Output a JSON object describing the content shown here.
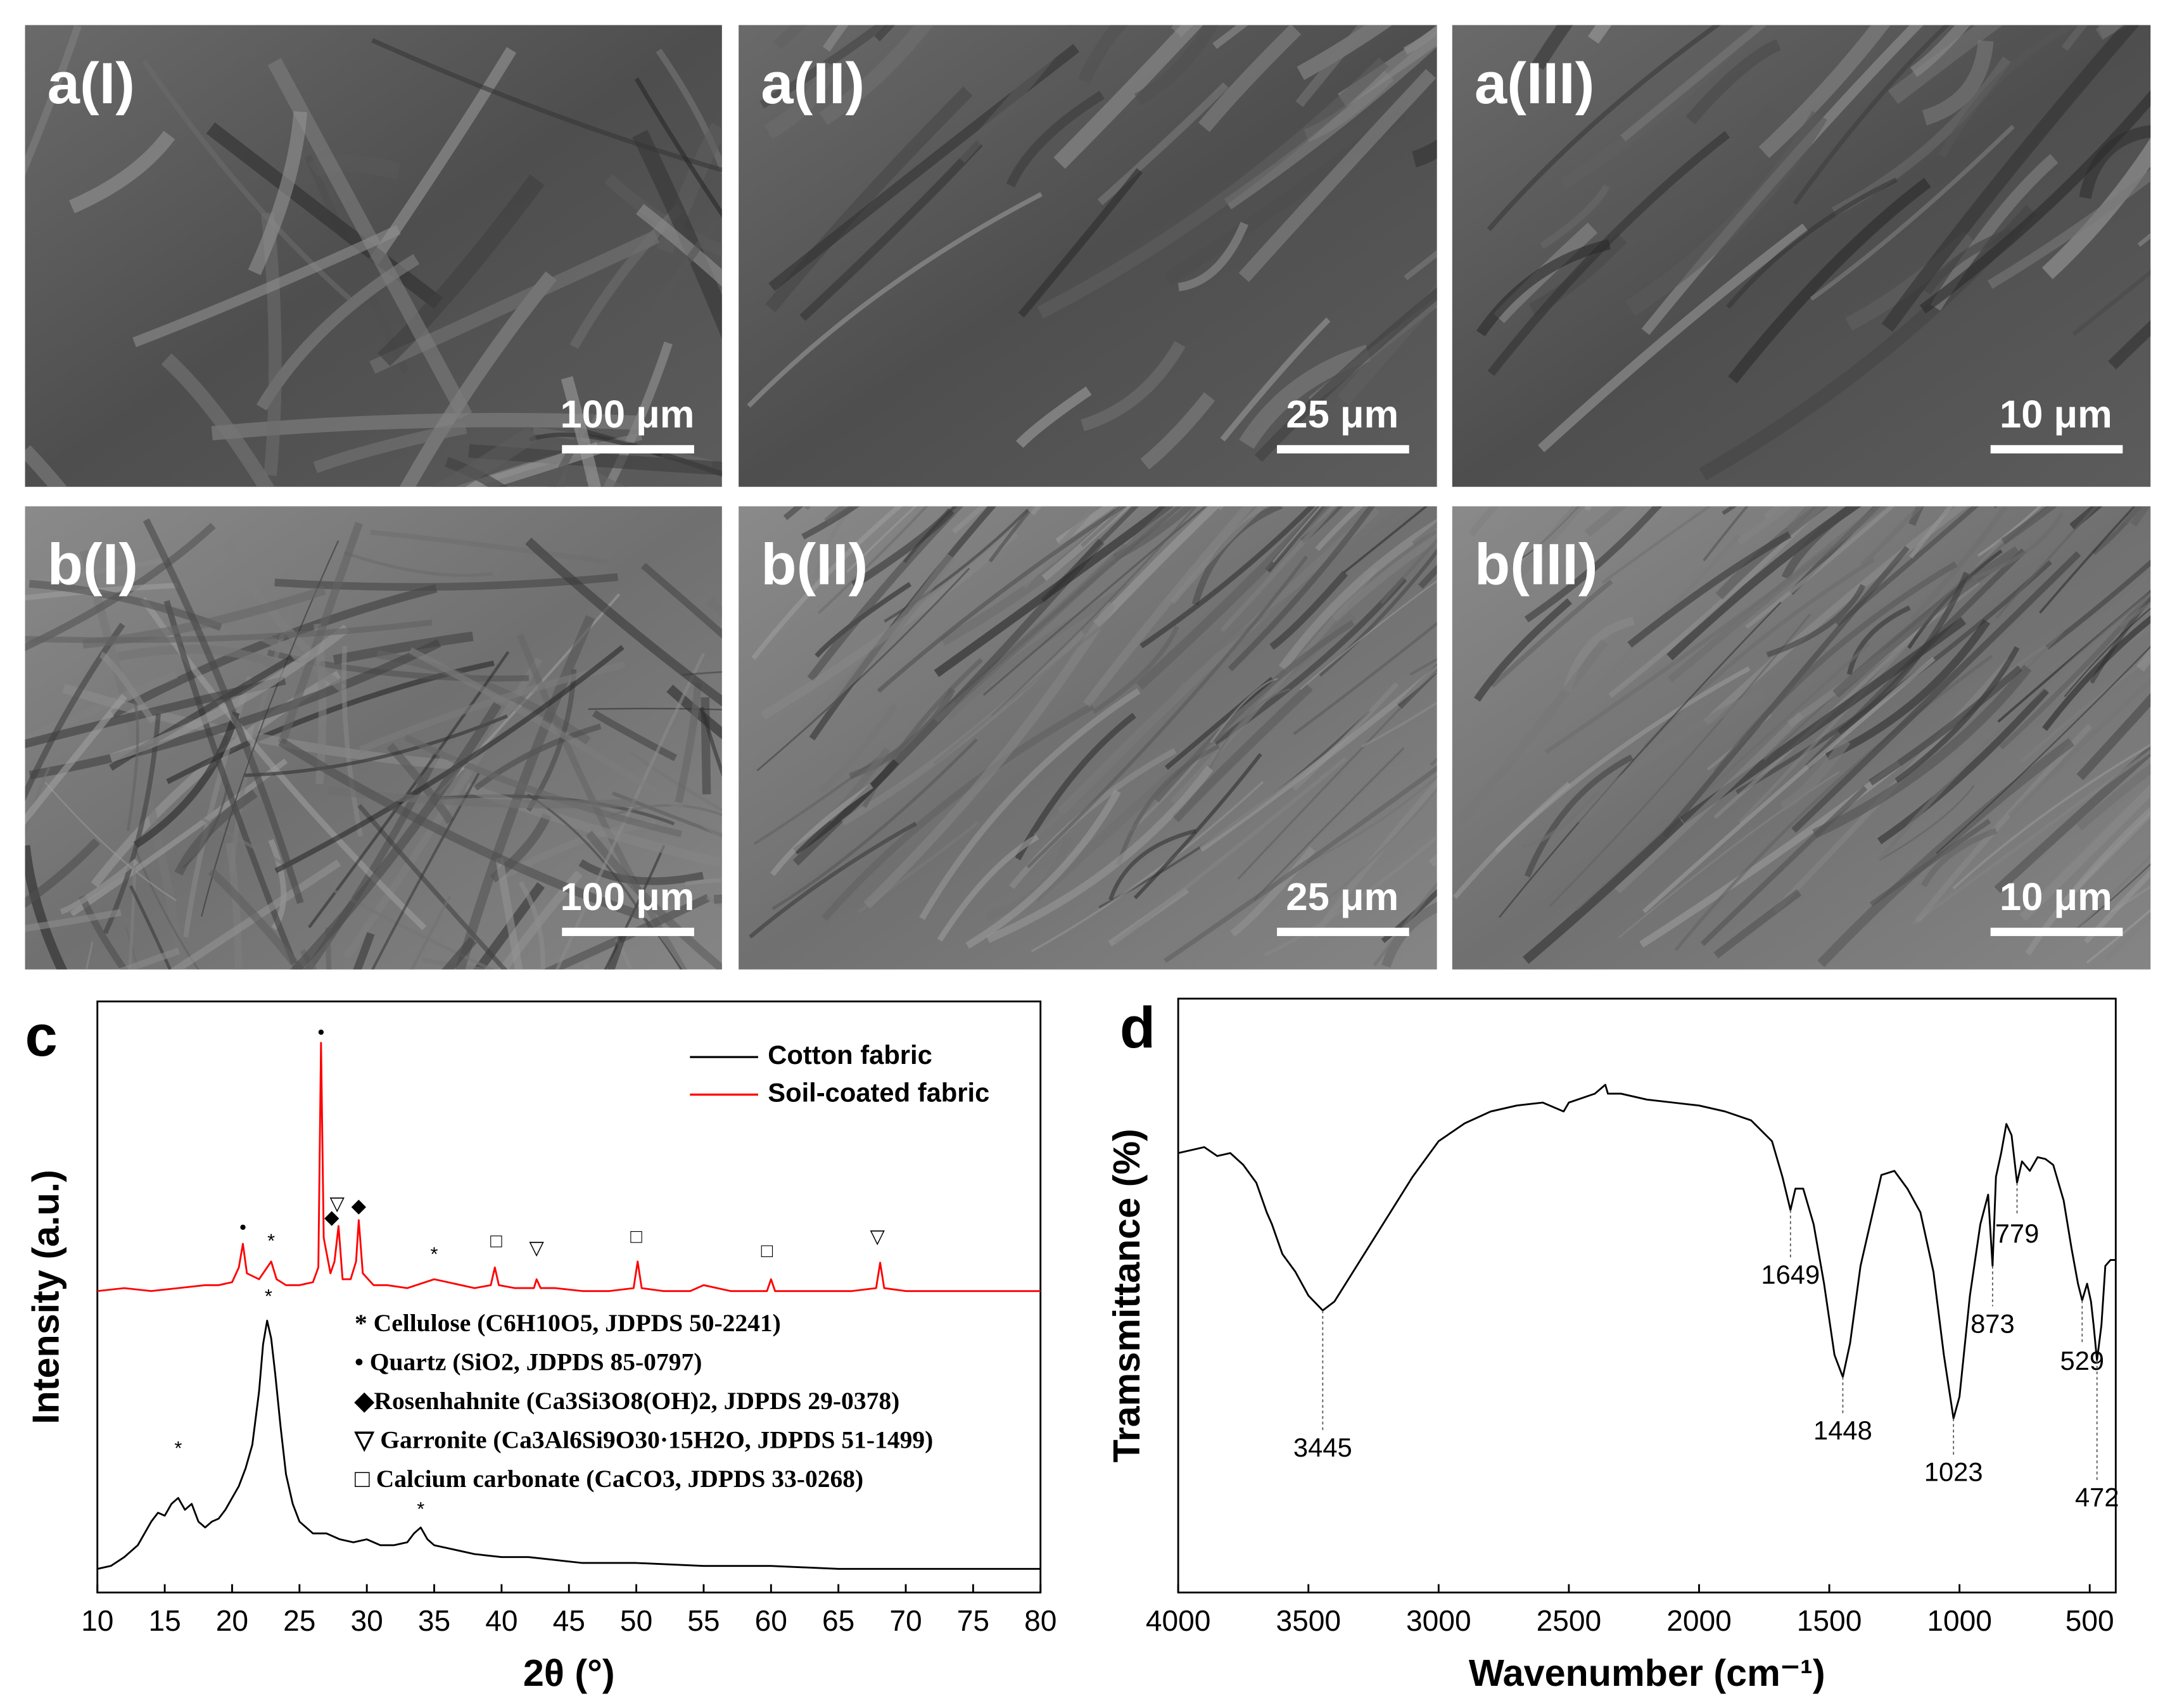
{
  "sem_panels": [
    {
      "label": "a(I)",
      "scale_bar": "100 μm"
    },
    {
      "label": "a(II)",
      "scale_bar": "25 μm"
    },
    {
      "label": "a(III)",
      "scale_bar": "10 μm"
    },
    {
      "label": "b(I)",
      "scale_bar": "100 μm"
    },
    {
      "label": "b(II)",
      "scale_bar": "25 μm"
    },
    {
      "label": "b(III)",
      "scale_bar": "10 μm"
    }
  ],
  "chart_data": [
    {
      "type": "line",
      "panel": "c",
      "x_label": "2θ (°)",
      "y_label": "Intensity (a.u.)",
      "xlim": [
        10,
        80
      ],
      "xticks": [
        10,
        15,
        20,
        25,
        30,
        35,
        40,
        45,
        50,
        55,
        60,
        65,
        70,
        75,
        80
      ],
      "ylim": [
        0,
        100
      ],
      "legend": "top-right",
      "series": [
        {
          "name": "Cotton fabric",
          "color": "#000000",
          "x": [
            10,
            11,
            12,
            13,
            13.5,
            14,
            14.5,
            15,
            15.5,
            16,
            16.5,
            17,
            17.5,
            18,
            18.5,
            19,
            19.5,
            20,
            20.5,
            21,
            21.5,
            22,
            22.3,
            22.6,
            22.9,
            23.2,
            23.6,
            24,
            24.5,
            25,
            25.5,
            26,
            27,
            28,
            29,
            30,
            31,
            32,
            33,
            33.5,
            34,
            34.5,
            35,
            36,
            37,
            38,
            40,
            42,
            44,
            46,
            48,
            50,
            55,
            60,
            65,
            70,
            75,
            80
          ],
          "values": [
            4,
            4.5,
            6,
            8,
            10,
            12,
            13.5,
            13,
            15,
            16,
            14,
            15,
            12,
            11,
            12,
            12.5,
            14,
            16,
            18,
            21,
            25,
            34,
            42,
            46,
            43,
            37,
            28,
            20,
            15,
            12,
            11,
            10,
            10,
            9,
            8.5,
            9,
            8,
            8,
            8.5,
            10,
            11,
            9,
            8,
            7.5,
            7,
            6.5,
            6,
            6,
            5.5,
            5,
            5,
            5,
            4.5,
            4.5,
            4,
            4,
            4,
            4
          ]
        },
        {
          "name": "Soil-coated fabric",
          "color": "#ff0000",
          "x": [
            10,
            12,
            14,
            16,
            18,
            19,
            20,
            20.5,
            20.8,
            21.1,
            22,
            22.6,
            22.9,
            23.3,
            24,
            25,
            26,
            26.4,
            26.6,
            26.8,
            27.3,
            27.6,
            27.9,
            28.2,
            28.8,
            29.2,
            29.4,
            29.7,
            30.5,
            31.5,
            33,
            35,
            36,
            37,
            38,
            39.2,
            39.5,
            39.8,
            41,
            42.4,
            42.6,
            42.9,
            44,
            46,
            48,
            49.8,
            50.1,
            50.4,
            52,
            54,
            55,
            57,
            59.7,
            60,
            60.3,
            62,
            64,
            66,
            67.8,
            68.1,
            68.4,
            70,
            72,
            74,
            76,
            78,
            80
          ],
          "values": [
            51,
            51.5,
            51,
            51.5,
            52,
            52,
            52.5,
            55,
            59,
            54,
            53,
            55,
            56,
            53,
            52,
            52,
            52.5,
            55,
            93,
            60,
            54,
            56,
            62,
            53,
            53,
            56,
            63,
            54,
            52,
            52,
            51.5,
            53,
            52.5,
            52,
            51.5,
            52,
            55,
            52,
            51.5,
            51.5,
            53,
            51.5,
            51.5,
            51,
            51,
            51.5,
            56,
            51.5,
            51,
            51,
            52,
            51,
            51,
            53,
            51,
            51,
            51,
            51,
            51.5,
            55.8,
            51.5,
            51,
            51,
            51,
            51,
            51,
            51
          ]
        }
      ],
      "peak_markers": [
        {
          "x": 26.6,
          "y": 94.6,
          "label": "•"
        },
        {
          "x": 20.8,
          "y": 61.6,
          "label": "•"
        },
        {
          "x": 22.9,
          "y": 59.3,
          "label": "*"
        },
        {
          "x": 27.4,
          "y": 63.3,
          "label": "◆"
        },
        {
          "x": 27.8,
          "y": 65.6,
          "label": "▽"
        },
        {
          "x": 29.4,
          "y": 65.2,
          "label": "◆"
        },
        {
          "x": 35,
          "y": 57,
          "label": "*"
        },
        {
          "x": 39.6,
          "y": 59.3,
          "label": "□"
        },
        {
          "x": 42.6,
          "y": 58.1,
          "label": "▽"
        },
        {
          "x": 50,
          "y": 60,
          "label": "□"
        },
        {
          "x": 59.7,
          "y": 57.6,
          "label": "□"
        },
        {
          "x": 67.9,
          "y": 60,
          "label": "▽"
        },
        {
          "x": 22.7,
          "y": 49.9,
          "label": "*"
        },
        {
          "x": 16,
          "y": 24.2,
          "label": "*"
        },
        {
          "x": 34,
          "y": 13.9,
          "label": "*"
        }
      ],
      "phases": [
        "* Cellulose (C6H10O5, JDPDS 50-2241)",
        "• Quartz (SiO2, JDPDS 85-0797)",
        "◆Rosenhahnite (Ca3Si3O8(OH)2, JDPDS 29-0378)",
        "▽ Garronite (Ca3Al6Si9O30·15H2O, JDPDS 51-1499)",
        "□ Calcium carbonate (CaCO3, JDPDS 33-0268)"
      ]
    },
    {
      "type": "line",
      "panel": "d",
      "x_label": "Wavenumber (cm⁻¹)",
      "y_label": "Tramsmittance (%)",
      "xlim": [
        4000,
        400
      ],
      "xticks": [
        4000,
        3500,
        3000,
        2500,
        2000,
        1500,
        1000,
        500
      ],
      "ylim": [
        0,
        100
      ],
      "series": [
        {
          "color": "#000000",
          "x": [
            4000,
            3900,
            3850,
            3800,
            3750,
            3700,
            3660,
            3640,
            3600,
            3550,
            3500,
            3445,
            3400,
            3300,
            3200,
            3100,
            3000,
            2900,
            2800,
            2700,
            2600,
            2520,
            2500,
            2400,
            2360,
            2350,
            2300,
            2200,
            2100,
            2000,
            1900,
            1800,
            1720,
            1680,
            1649,
            1630,
            1600,
            1560,
            1520,
            1480,
            1448,
            1420,
            1380,
            1300,
            1250,
            1200,
            1150,
            1100,
            1060,
            1023,
            1000,
            960,
            920,
            890,
            873,
            860,
            840,
            820,
            800,
            779,
            760,
            730,
            700,
            670,
            640,
            600,
            570,
            545,
            529,
            510,
            495,
            485,
            472,
            455,
            440,
            420,
            400
          ],
          "values": [
            74,
            75,
            73.5,
            74,
            72,
            69,
            64,
            62,
            57,
            54,
            50,
            47.5,
            49,
            56,
            63,
            70,
            76,
            79,
            81,
            82,
            82.5,
            81,
            82.5,
            84,
            85.5,
            84,
            84,
            83,
            82.5,
            82,
            81,
            79.5,
            76,
            70,
            64.4,
            68,
            68,
            62,
            52,
            40,
            36.3,
            42,
            55,
            70.3,
            71,
            68,
            64,
            54,
            40,
            29.3,
            33,
            50,
            62,
            67,
            55,
            70,
            74,
            78.9,
            77,
            69,
            72.6,
            71,
            73.3,
            73,
            72,
            66,
            58,
            52,
            49.2,
            52,
            49,
            45,
            39.1,
            45,
            55,
            56,
            56
          ]
        }
      ],
      "peaks": [
        3445,
        1649,
        1448,
        1023,
        873,
        779,
        529,
        472
      ]
    }
  ]
}
